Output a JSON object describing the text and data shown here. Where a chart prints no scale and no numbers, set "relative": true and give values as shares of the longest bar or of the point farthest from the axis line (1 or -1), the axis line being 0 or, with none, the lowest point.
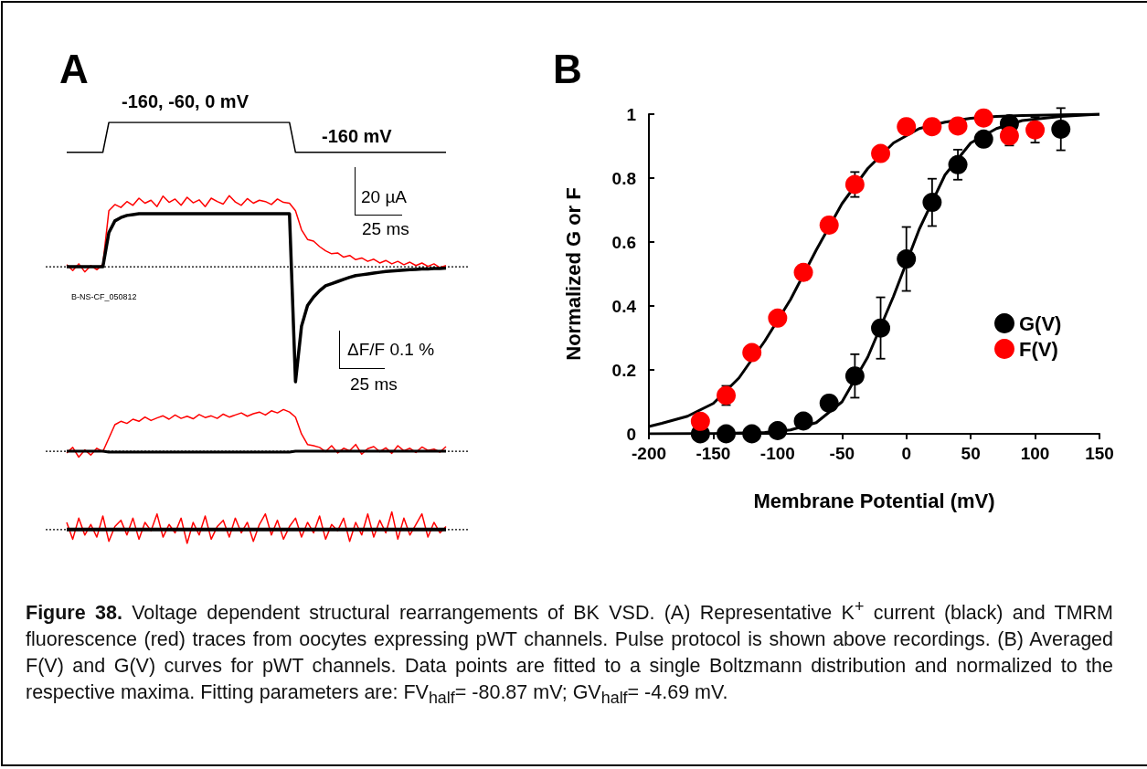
{
  "chart_data": [
    {
      "type": "line",
      "title": "A",
      "relative": true,
      "annotations": [
        "-160, -60, 0 mV",
        "-160 mV",
        "20 µA",
        "25 ms",
        "B-NS-CF_050812",
        "ΔF/F 0.1 %",
        "25 ms"
      ],
      "categories": [
        null,
        null,
        null,
        null,
        null,
        null,
        null,
        null,
        null,
        null,
        null,
        null,
        null,
        null,
        null,
        null,
        null,
        null,
        null,
        null,
        null,
        null,
        null,
        null,
        null,
        null,
        null,
        null,
        null,
        null,
        null,
        null,
        null,
        null,
        null,
        null,
        null,
        null,
        null,
        null,
        null,
        null,
        null,
        null,
        null,
        null,
        null,
        null,
        null,
        null,
        null,
        null,
        null,
        null,
        null,
        null,
        null,
        null,
        null,
        null,
        null,
        null,
        null,
        null
      ],
      "series": [
        {
          "color": "#000000",
          "values": [
            0.929,
            0.929,
            0.929,
            0.929,
            0.929,
            0.929,
            0.929,
            1.0,
            1.0,
            1.0,
            1.0,
            1.0,
            1.0,
            1.0,
            1.0,
            1.0,
            1.0,
            1.0,
            1.0,
            1.0,
            1.0,
            1.0,
            1.0,
            1.0,
            1.0,
            1.0,
            1.0,
            1.0,
            1.0,
            1.0,
            1.0,
            1.0,
            1.0,
            1.0,
            1.0,
            1.0,
            1.0,
            1.0,
            0.929,
            0.929,
            0.929,
            0.929,
            0.929,
            0.929,
            0.929,
            0.929,
            0.929,
            0.929,
            0.929,
            0.929,
            0.929,
            0.929,
            0.929,
            0.929,
            0.929,
            0.929,
            0.929,
            0.929,
            0.929,
            0.929,
            0.929,
            0.929,
            0.929,
            0.929
          ]
        },
        {
          "color": "#ff0000",
          "values": [
            0.662,
            0.648,
            0.664,
            0.645,
            0.66,
            0.65,
            0.663,
            0.79,
            0.805,
            0.798,
            0.812,
            0.803,
            0.82,
            0.808,
            0.815,
            0.8,
            0.825,
            0.81,
            0.818,
            0.803,
            0.822,
            0.809,
            0.816,
            0.8,
            0.82,
            0.812,
            0.806,
            0.826,
            0.811,
            0.803,
            0.819,
            0.808,
            0.815,
            0.812,
            0.805,
            0.818,
            0.81,
            0.808,
            0.79,
            0.745,
            0.722,
            0.718,
            0.705,
            0.695,
            0.688,
            0.69,
            0.68,
            0.684,
            0.674,
            0.678,
            0.67,
            0.675,
            0.666,
            0.672,
            0.664,
            0.67,
            0.662,
            0.668,
            0.66,
            0.666,
            0.658,
            0.664,
            0.655,
            0.66
          ]
        },
        {
          "color": "#000000",
          "values": [
            0.657,
            0.657,
            0.657,
            0.657,
            0.657,
            0.657,
            0.657,
            0.738,
            0.766,
            0.774,
            0.779,
            0.781,
            0.783,
            0.783,
            0.783,
            0.783,
            0.783,
            0.783,
            0.783,
            0.783,
            0.783,
            0.783,
            0.783,
            0.783,
            0.783,
            0.783,
            0.783,
            0.783,
            0.783,
            0.783,
            0.783,
            0.783,
            0.783,
            0.783,
            0.783,
            0.783,
            0.783,
            0.783,
            0.384,
            0.516,
            0.565,
            0.585,
            0.6,
            0.612,
            0.617,
            0.622,
            0.627,
            0.632,
            0.636,
            0.638,
            0.64,
            0.642,
            0.644,
            0.646,
            0.647,
            0.648,
            0.649,
            0.65,
            0.651,
            0.652,
            0.652,
            0.653,
            0.653,
            0.654
          ]
        },
        {
          "color": "#ff0000",
          "values": [
            0.215,
            0.228,
            0.205,
            0.222,
            0.21,
            0.226,
            0.218,
            0.25,
            0.282,
            0.29,
            0.285,
            0.295,
            0.29,
            0.3,
            0.292,
            0.298,
            0.303,
            0.295,
            0.305,
            0.297,
            0.302,
            0.296,
            0.306,
            0.299,
            0.303,
            0.297,
            0.307,
            0.3,
            0.305,
            0.31,
            0.302,
            0.308,
            0.312,
            0.305,
            0.315,
            0.31,
            0.318,
            0.312,
            0.3,
            0.26,
            0.235,
            0.232,
            0.228,
            0.218,
            0.232,
            0.215,
            0.226,
            0.22,
            0.235,
            0.212,
            0.225,
            0.23,
            0.218,
            0.227,
            0.214,
            0.232,
            0.22,
            0.226,
            0.216,
            0.229,
            0.221,
            0.224,
            0.217,
            0.23
          ]
        },
        {
          "color": "#000000",
          "values": [
            0.219,
            0.219,
            0.219,
            0.219,
            0.219,
            0.219,
            0.219,
            0.217,
            0.217,
            0.217,
            0.217,
            0.217,
            0.217,
            0.217,
            0.217,
            0.217,
            0.217,
            0.217,
            0.217,
            0.217,
            0.217,
            0.217,
            0.217,
            0.217,
            0.217,
            0.217,
            0.217,
            0.217,
            0.217,
            0.217,
            0.217,
            0.217,
            0.217,
            0.217,
            0.217,
            0.217,
            0.217,
            0.217,
            0.219,
            0.219,
            0.219,
            0.219,
            0.219,
            0.219,
            0.219,
            0.219,
            0.219,
            0.219,
            0.219,
            0.219,
            0.219,
            0.219,
            0.219,
            0.219,
            0.219,
            0.219,
            0.219,
            0.219,
            0.219,
            0.219,
            0.219,
            0.219,
            0.219,
            0.219
          ]
        },
        {
          "color": "#ff0000",
          "values": [
            0.05,
            0.01,
            0.06,
            0.02,
            0.045,
            0.015,
            0.065,
            0.005,
            0.04,
            0.055,
            0.02,
            0.06,
            0.01,
            0.05,
            0.03,
            0.07,
            0.015,
            0.045,
            0.025,
            0.06,
            0.0,
            0.05,
            0.02,
            0.065,
            0.01,
            0.04,
            0.055,
            0.015,
            0.06,
            0.025,
            0.05,
            0.005,
            0.045,
            0.07,
            0.02,
            0.055,
            0.01,
            0.04,
            0.06,
            0.015,
            0.05,
            0.025,
            0.065,
            0.01,
            0.045,
            0.03,
            0.06,
            0.005,
            0.05,
            0.02,
            0.07,
            0.015,
            0.055,
            0.025,
            0.075,
            0.01,
            0.06,
            0.02,
            0.045,
            0.07,
            0.015,
            0.05,
            0.025,
            0.04
          ]
        },
        {
          "color": "#000000",
          "values": [
            0.033,
            0.033,
            0.033,
            0.033,
            0.033,
            0.033,
            0.033,
            0.033,
            0.033,
            0.033,
            0.033,
            0.033,
            0.033,
            0.033,
            0.033,
            0.033,
            0.033,
            0.033,
            0.033,
            0.033,
            0.033,
            0.033,
            0.033,
            0.033,
            0.033,
            0.033,
            0.033,
            0.033,
            0.033,
            0.033,
            0.033,
            0.033,
            0.033,
            0.033,
            0.033,
            0.033,
            0.033,
            0.033,
            0.033,
            0.033,
            0.033,
            0.033,
            0.033,
            0.033,
            0.033,
            0.033,
            0.033,
            0.033,
            0.033,
            0.033,
            0.033,
            0.033,
            0.033,
            0.033,
            0.033,
            0.033,
            0.033,
            0.033,
            0.033,
            0.033,
            0.033,
            0.033,
            0.033,
            0.033
          ]
        }
      ],
      "ref_lines": [
        {
          "axis": "y",
          "value": 0.657,
          "color": "#000000",
          "line_style": "dotted"
        },
        {
          "axis": "y",
          "value": 0.219,
          "color": "#000000",
          "line_style": "dotted"
        },
        {
          "axis": "y",
          "value": 0.033,
          "color": "#000000",
          "line_style": "dotted"
        }
      ]
    },
    {
      "type": "scatter",
      "title": "B",
      "xlabel": "Membrane Potential (mV)",
      "ylabel": "Normalized G or F",
      "xlim": [
        -200,
        150
      ],
      "xticks": [
        -200,
        -150,
        -100,
        -50,
        0,
        50,
        100,
        150
      ],
      "ylim": [
        0,
        1
      ],
      "yticks": [
        0,
        0.2,
        0.4,
        0.6,
        0.8,
        1
      ],
      "legend": "right",
      "marker": "circle",
      "series": [
        {
          "name": "G(V)",
          "color": "#000000",
          "x": [
            -160,
            -140,
            -120,
            -100,
            -80,
            -60,
            -40,
            -20,
            0,
            20,
            40,
            60,
            80,
            120
          ],
          "values": [
            0,
            0,
            0,
            0.01,
            0.04,
            0.096,
            0.181,
            0.331,
            0.547,
            0.724,
            0.842,
            0.922,
            0.97,
            0.953
          ],
          "errors": [
            null,
            null,
            null,
            null,
            null,
            0.01,
            0.068,
            0.096,
            0.1,
            0.074,
            0.047,
            0.02,
            0.02,
            0.066
          ]
        },
        {
          "name": "F(V)",
          "color": "#ff0000",
          "x": [
            -160,
            -140,
            -120,
            -100,
            -80,
            -60,
            -40,
            -20,
            0,
            20,
            40,
            60,
            80,
            100
          ],
          "values": [
            0.039,
            0.12,
            0.254,
            0.362,
            0.505,
            0.653,
            0.78,
            0.877,
            0.961,
            0.961,
            0.963,
            0.988,
            0.932,
            0.951
          ],
          "errors": [
            null,
            0.03,
            null,
            null,
            null,
            null,
            0.039,
            null,
            null,
            null,
            null,
            null,
            0.03,
            0.04
          ]
        },
        {
          "type": "line",
          "marker": "none",
          "color": "#000000",
          "x": [
            -200,
            -190,
            -170,
            -150,
            -130,
            -110,
            -90,
            -70,
            -50,
            -30,
            -10,
            10,
            30,
            50,
            70,
            90,
            120,
            150
          ],
          "values": [
            0.023,
            0.033,
            0.055,
            0.095,
            0.175,
            0.29,
            0.42,
            0.575,
            0.72,
            0.83,
            0.91,
            0.955,
            0.975,
            0.987,
            0.993,
            0.996,
            0.998,
            1.0
          ]
        },
        {
          "type": "line",
          "marker": "none",
          "color": "#000000",
          "x": [
            -200,
            -150,
            -110,
            -90,
            -70,
            -50,
            -30,
            -10,
            10,
            30,
            50,
            70,
            90,
            120,
            150
          ],
          "values": [
            0,
            0.001,
            0.004,
            0.012,
            0.035,
            0.1,
            0.24,
            0.43,
            0.64,
            0.81,
            0.91,
            0.955,
            0.98,
            0.993,
            1.0
          ]
        }
      ],
      "annotations": [
        "Figure 38.",
        "Voltage dependent structural rearrangements of BK VSD. (A) Representative K$^{+}$ current (black) and TMRM fluorescence (red) traces from oocytes expressing pWT channels. Pulse protocol is shown above recordings. (B) Averaged F(V) and G(V) curves for pWT channels. Data points are fitted to a single Boltzmann distribution and normalized to the respective maxima. Fitting parameters are: FV$_{half}$= -80.87 mV; GV$_{half}$= -4.69 mV."
      ]
    }
  ]
}
